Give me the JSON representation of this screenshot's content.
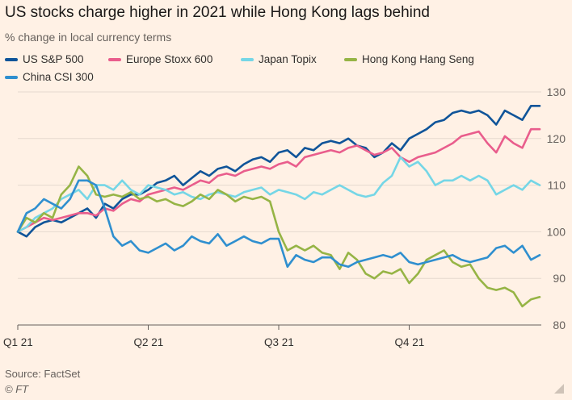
{
  "header": {
    "title": "US stocks charge higher in 2021 while Hong Kong lags behind",
    "subtitle": "% change in local currency terms"
  },
  "legend": [
    {
      "label": "US S&P 500",
      "color": "#0f5499"
    },
    {
      "label": "Europe Stoxx 600",
      "color": "#e95d8c"
    },
    {
      "label": "Japan Topix",
      "color": "#75d6e6"
    },
    {
      "label": "Hong Kong Hang Seng",
      "color": "#96b445"
    },
    {
      "label": "China CSI 300",
      "color": "#2f8fcf"
    }
  ],
  "footer": {
    "source": "Source: FactSet",
    "credit": "© FT"
  },
  "chart_data": {
    "type": "line",
    "title": "US stocks charge higher in 2021 while Hong Kong lags behind",
    "subtitle": "% change in local currency terms",
    "xlabel": "",
    "ylabel": "",
    "ylim": [
      80,
      130
    ],
    "yticks": [
      80,
      90,
      100,
      110,
      120,
      130
    ],
    "y_axis_side": "right",
    "grid": true,
    "x_domain": [
      0,
      12
    ],
    "x_unit": "months since 1 Jan 2021",
    "xticks": [
      {
        "x": 0,
        "label": "Q1 21"
      },
      {
        "x": 3,
        "label": "Q2 21"
      },
      {
        "x": 6,
        "label": "Q3 21"
      },
      {
        "x": 9,
        "label": "Q4 21"
      }
    ],
    "series": [
      {
        "name": "US S&P 500",
        "color": "#0f5499",
        "x": [
          0,
          0.2,
          0.4,
          0.6,
          0.8,
          1.0,
          1.2,
          1.4,
          1.6,
          1.8,
          2.0,
          2.2,
          2.4,
          2.6,
          2.8,
          3.0,
          3.2,
          3.4,
          3.6,
          3.8,
          4.0,
          4.2,
          4.4,
          4.6,
          4.8,
          5.0,
          5.2,
          5.4,
          5.6,
          5.8,
          6.0,
          6.2,
          6.4,
          6.6,
          6.8,
          7.0,
          7.2,
          7.4,
          7.6,
          7.8,
          8.0,
          8.2,
          8.4,
          8.6,
          8.8,
          9.0,
          9.2,
          9.4,
          9.6,
          9.8,
          10.0,
          10.2,
          10.4,
          10.6,
          10.8,
          11.0,
          11.2,
          11.4,
          11.6,
          11.8,
          12.0
        ],
        "y": [
          100,
          99,
          101,
          102,
          102.5,
          102,
          103,
          104,
          105,
          103,
          106,
          105,
          107,
          108,
          108,
          109,
          110.5,
          111,
          112,
          110,
          111.5,
          113,
          112,
          113.5,
          114,
          113,
          114.5,
          115.5,
          116,
          115,
          117,
          117.5,
          116,
          118,
          117.5,
          119,
          119.5,
          119,
          120,
          118.5,
          118,
          116,
          117,
          119,
          117.5,
          120,
          121,
          122,
          123.5,
          124,
          125.5,
          126,
          125.5,
          126,
          125,
          123,
          126,
          125,
          124,
          127,
          127
        ]
      },
      {
        "name": "Europe Stoxx 600",
        "color": "#e95d8c",
        "x": [
          0,
          0.2,
          0.4,
          0.6,
          0.8,
          1.0,
          1.2,
          1.4,
          1.6,
          1.8,
          2.0,
          2.2,
          2.4,
          2.6,
          2.8,
          3.0,
          3.2,
          3.4,
          3.6,
          3.8,
          4.0,
          4.2,
          4.4,
          4.6,
          4.8,
          5.0,
          5.2,
          5.4,
          5.6,
          5.8,
          6.0,
          6.2,
          6.4,
          6.6,
          6.8,
          7.0,
          7.2,
          7.4,
          7.6,
          7.8,
          8.0,
          8.2,
          8.4,
          8.6,
          8.8,
          9.0,
          9.2,
          9.4,
          9.6,
          9.8,
          10.0,
          10.2,
          10.4,
          10.6,
          10.8,
          11.0,
          11.2,
          11.4,
          11.6,
          11.8,
          12.0
        ],
        "y": [
          100,
          101,
          102,
          103,
          102.5,
          103,
          103.5,
          104,
          104,
          103.5,
          105,
          104.5,
          106,
          107,
          106.5,
          108,
          108.5,
          109,
          109.5,
          109,
          110,
          111,
          110.5,
          112,
          112.5,
          112,
          113,
          113.5,
          114,
          113.5,
          114.5,
          115,
          114,
          116,
          116.5,
          117,
          117.5,
          117,
          118,
          118.5,
          117.5,
          116.5,
          117,
          118,
          116,
          115,
          116,
          116.5,
          117,
          118,
          119,
          120.5,
          121,
          121.5,
          119,
          117,
          120.5,
          119,
          118,
          122,
          122
        ]
      },
      {
        "name": "Japan Topix",
        "color": "#75d6e6",
        "x": [
          0,
          0.2,
          0.4,
          0.6,
          0.8,
          1.0,
          1.2,
          1.4,
          1.6,
          1.8,
          2.0,
          2.2,
          2.4,
          2.6,
          2.8,
          3.0,
          3.2,
          3.4,
          3.6,
          3.8,
          4.0,
          4.2,
          4.4,
          4.6,
          4.8,
          5.0,
          5.2,
          5.4,
          5.6,
          5.8,
          6.0,
          6.2,
          6.4,
          6.6,
          6.8,
          7.0,
          7.2,
          7.4,
          7.6,
          7.8,
          8.0,
          8.2,
          8.4,
          8.6,
          8.8,
          9.0,
          9.2,
          9.4,
          9.6,
          9.8,
          10.0,
          10.2,
          10.4,
          10.6,
          10.8,
          11.0,
          11.2,
          11.4,
          11.6,
          11.8,
          12.0
        ],
        "y": [
          100,
          101,
          103,
          104,
          105,
          107,
          108,
          109,
          107,
          110,
          110,
          109,
          111,
          109,
          108,
          110,
          109.5,
          109,
          108,
          108.5,
          107.5,
          107,
          108,
          108.5,
          108,
          107.5,
          108.5,
          109,
          109.5,
          108,
          109,
          108.5,
          108,
          107,
          108.5,
          108,
          109,
          110,
          109,
          108,
          107.5,
          108,
          110.5,
          112,
          116,
          114,
          115,
          113,
          110,
          111,
          111,
          112,
          111,
          112,
          111,
          108,
          109,
          110,
          109,
          111,
          110
        ]
      },
      {
        "name": "Hong Kong Hang Seng",
        "color": "#96b445",
        "x": [
          0,
          0.2,
          0.4,
          0.6,
          0.8,
          1.0,
          1.2,
          1.4,
          1.6,
          1.8,
          2.0,
          2.2,
          2.4,
          2.6,
          2.8,
          3.0,
          3.2,
          3.4,
          3.6,
          3.8,
          4.0,
          4.2,
          4.4,
          4.6,
          4.8,
          5.0,
          5.2,
          5.4,
          5.6,
          5.8,
          6.0,
          6.2,
          6.4,
          6.6,
          6.8,
          7.0,
          7.2,
          7.4,
          7.6,
          7.8,
          8.0,
          8.2,
          8.4,
          8.6,
          8.8,
          9.0,
          9.2,
          9.4,
          9.6,
          9.8,
          10.0,
          10.2,
          10.4,
          10.6,
          10.8,
          11.0,
          11.2,
          11.4,
          11.6,
          11.8,
          12.0
        ],
        "y": [
          100,
          103,
          102,
          104,
          103,
          108,
          110,
          114,
          112,
          108,
          107.5,
          108,
          107.5,
          108.5,
          107,
          107.5,
          106.5,
          107,
          106,
          105.5,
          106.5,
          108,
          107,
          109,
          108,
          106.5,
          107.5,
          107,
          107.5,
          106.5,
          100,
          96,
          97,
          96,
          97,
          95.5,
          95,
          92,
          95.5,
          94,
          91,
          90,
          91.5,
          91,
          92,
          89,
          91,
          94,
          95,
          96,
          93.5,
          92.5,
          93,
          90,
          88,
          87.5,
          88,
          87,
          84,
          85.5,
          86
        ]
      },
      {
        "name": "China CSI 300",
        "color": "#2f8fcf",
        "x": [
          0,
          0.2,
          0.4,
          0.6,
          0.8,
          1.0,
          1.2,
          1.4,
          1.6,
          1.8,
          2.0,
          2.2,
          2.4,
          2.6,
          2.8,
          3.0,
          3.2,
          3.4,
          3.6,
          3.8,
          4.0,
          4.2,
          4.4,
          4.6,
          4.8,
          5.0,
          5.2,
          5.4,
          5.6,
          5.8,
          6.0,
          6.2,
          6.4,
          6.6,
          6.8,
          7.0,
          7.2,
          7.4,
          7.6,
          7.8,
          8.0,
          8.2,
          8.4,
          8.6,
          8.8,
          9.0,
          9.2,
          9.4,
          9.6,
          9.8,
          10.0,
          10.2,
          10.4,
          10.6,
          10.8,
          11.0,
          11.2,
          11.4,
          11.6,
          11.8,
          12.0
        ],
        "y": [
          100,
          104,
          105,
          107,
          106,
          105,
          107,
          111,
          111,
          110,
          105,
          99,
          97,
          98,
          96,
          95.5,
          96.5,
          97.5,
          96,
          97,
          99,
          98,
          97.5,
          99.5,
          97,
          98,
          99,
          98,
          97.5,
          98.5,
          98.5,
          92.5,
          95,
          94,
          93.5,
          94.5,
          94.5,
          93,
          92.5,
          93.5,
          94,
          94.5,
          95,
          94.5,
          95.5,
          93.5,
          93,
          93.5,
          94,
          94.5,
          95,
          94,
          93.5,
          94,
          94.5,
          96.5,
          97,
          95.5,
          97,
          94,
          95
        ]
      }
    ]
  }
}
